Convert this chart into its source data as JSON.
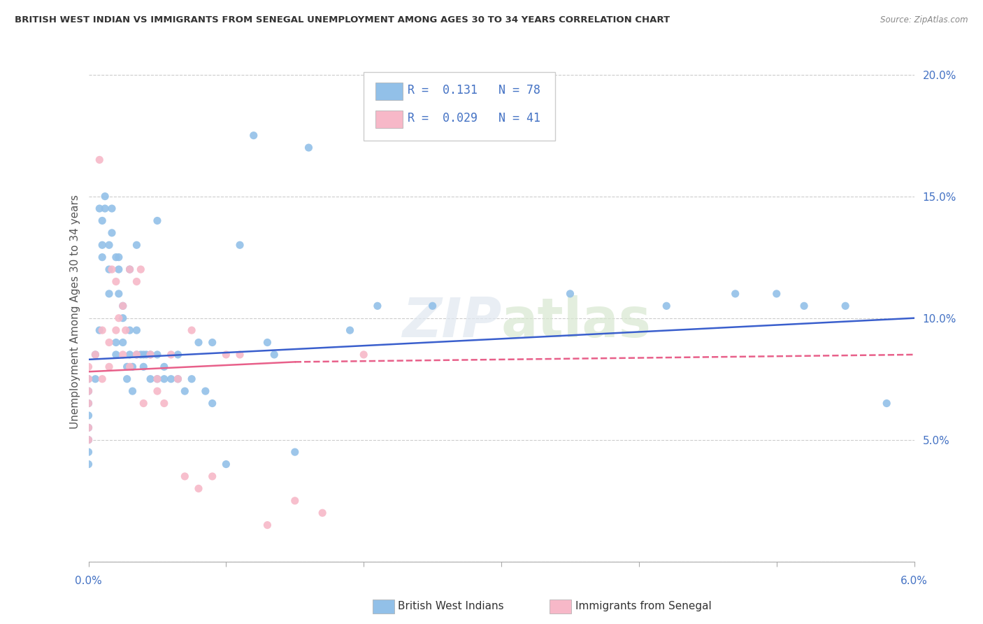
{
  "title": "BRITISH WEST INDIAN VS IMMIGRANTS FROM SENEGAL UNEMPLOYMENT AMONG AGES 30 TO 34 YEARS CORRELATION CHART",
  "source": "Source: ZipAtlas.com",
  "ylabel": "Unemployment Among Ages 30 to 34 years",
  "xlim": [
    0.0,
    6.0
  ],
  "ylim": [
    0.0,
    20.5
  ],
  "legend1_r": "0.131",
  "legend1_n": "78",
  "legend2_r": "0.029",
  "legend2_n": "41",
  "blue_color": "#92c0e8",
  "pink_color": "#f7b8c8",
  "blue_line_color": "#3a5fcd",
  "pink_line_color": "#e8608a",
  "blue_line_x0": 0.0,
  "blue_line_y0": 8.3,
  "blue_line_x1": 6.0,
  "blue_line_y1": 10.0,
  "pink_solid_x0": 0.0,
  "pink_solid_y0": 7.8,
  "pink_solid_x1": 1.5,
  "pink_solid_y1": 8.2,
  "pink_dash_x0": 1.5,
  "pink_dash_y0": 8.2,
  "pink_dash_x1": 6.0,
  "pink_dash_y1": 8.5,
  "blue_scatter_x": [
    0.0,
    0.0,
    0.0,
    0.0,
    0.0,
    0.0,
    0.0,
    0.0,
    0.05,
    0.05,
    0.08,
    0.08,
    0.1,
    0.1,
    0.1,
    0.12,
    0.12,
    0.15,
    0.15,
    0.15,
    0.17,
    0.17,
    0.2,
    0.2,
    0.2,
    0.22,
    0.22,
    0.22,
    0.25,
    0.25,
    0.25,
    0.28,
    0.28,
    0.3,
    0.3,
    0.3,
    0.32,
    0.32,
    0.35,
    0.35,
    0.35,
    0.38,
    0.4,
    0.4,
    0.42,
    0.45,
    0.45,
    0.5,
    0.5,
    0.5,
    0.55,
    0.55,
    0.6,
    0.65,
    0.65,
    0.7,
    0.75,
    0.8,
    0.85,
    0.9,
    0.9,
    1.0,
    1.1,
    1.2,
    1.3,
    1.35,
    1.5,
    1.6,
    1.9,
    2.1,
    2.5,
    3.5,
    4.2,
    4.7,
    5.0,
    5.2,
    5.5,
    5.8
  ],
  "blue_scatter_y": [
    7.5,
    7.0,
    6.5,
    6.0,
    5.5,
    5.0,
    4.5,
    4.0,
    8.5,
    7.5,
    14.5,
    9.5,
    14.0,
    13.0,
    12.5,
    15.0,
    14.5,
    13.0,
    12.0,
    11.0,
    14.5,
    13.5,
    12.5,
    9.0,
    8.5,
    12.5,
    12.0,
    11.0,
    10.5,
    10.0,
    9.0,
    8.0,
    7.5,
    12.0,
    9.5,
    8.5,
    8.0,
    7.0,
    8.5,
    13.0,
    9.5,
    8.5,
    8.5,
    8.0,
    8.5,
    8.5,
    7.5,
    7.5,
    8.5,
    14.0,
    8.0,
    7.5,
    7.5,
    8.5,
    7.5,
    7.0,
    7.5,
    9.0,
    7.0,
    9.0,
    6.5,
    4.0,
    13.0,
    17.5,
    9.0,
    8.5,
    4.5,
    17.0,
    9.5,
    10.5,
    10.5,
    11.0,
    10.5,
    11.0,
    11.0,
    10.5,
    10.5,
    6.5
  ],
  "pink_scatter_x": [
    0.0,
    0.0,
    0.0,
    0.0,
    0.0,
    0.0,
    0.05,
    0.08,
    0.1,
    0.1,
    0.15,
    0.15,
    0.17,
    0.2,
    0.2,
    0.22,
    0.25,
    0.25,
    0.27,
    0.3,
    0.3,
    0.35,
    0.35,
    0.38,
    0.4,
    0.45,
    0.5,
    0.5,
    0.55,
    0.6,
    0.65,
    0.7,
    0.75,
    0.8,
    0.9,
    1.0,
    1.1,
    1.3,
    1.5,
    1.7,
    2.0
  ],
  "pink_scatter_y": [
    8.0,
    7.5,
    7.0,
    6.5,
    5.5,
    5.0,
    8.5,
    16.5,
    9.5,
    7.5,
    9.0,
    8.0,
    12.0,
    11.5,
    9.5,
    10.0,
    8.5,
    10.5,
    9.5,
    8.0,
    12.0,
    11.5,
    8.5,
    12.0,
    6.5,
    8.5,
    7.5,
    7.0,
    6.5,
    8.5,
    7.5,
    3.5,
    9.5,
    3.0,
    3.5,
    8.5,
    8.5,
    1.5,
    2.5,
    2.0,
    8.5
  ]
}
